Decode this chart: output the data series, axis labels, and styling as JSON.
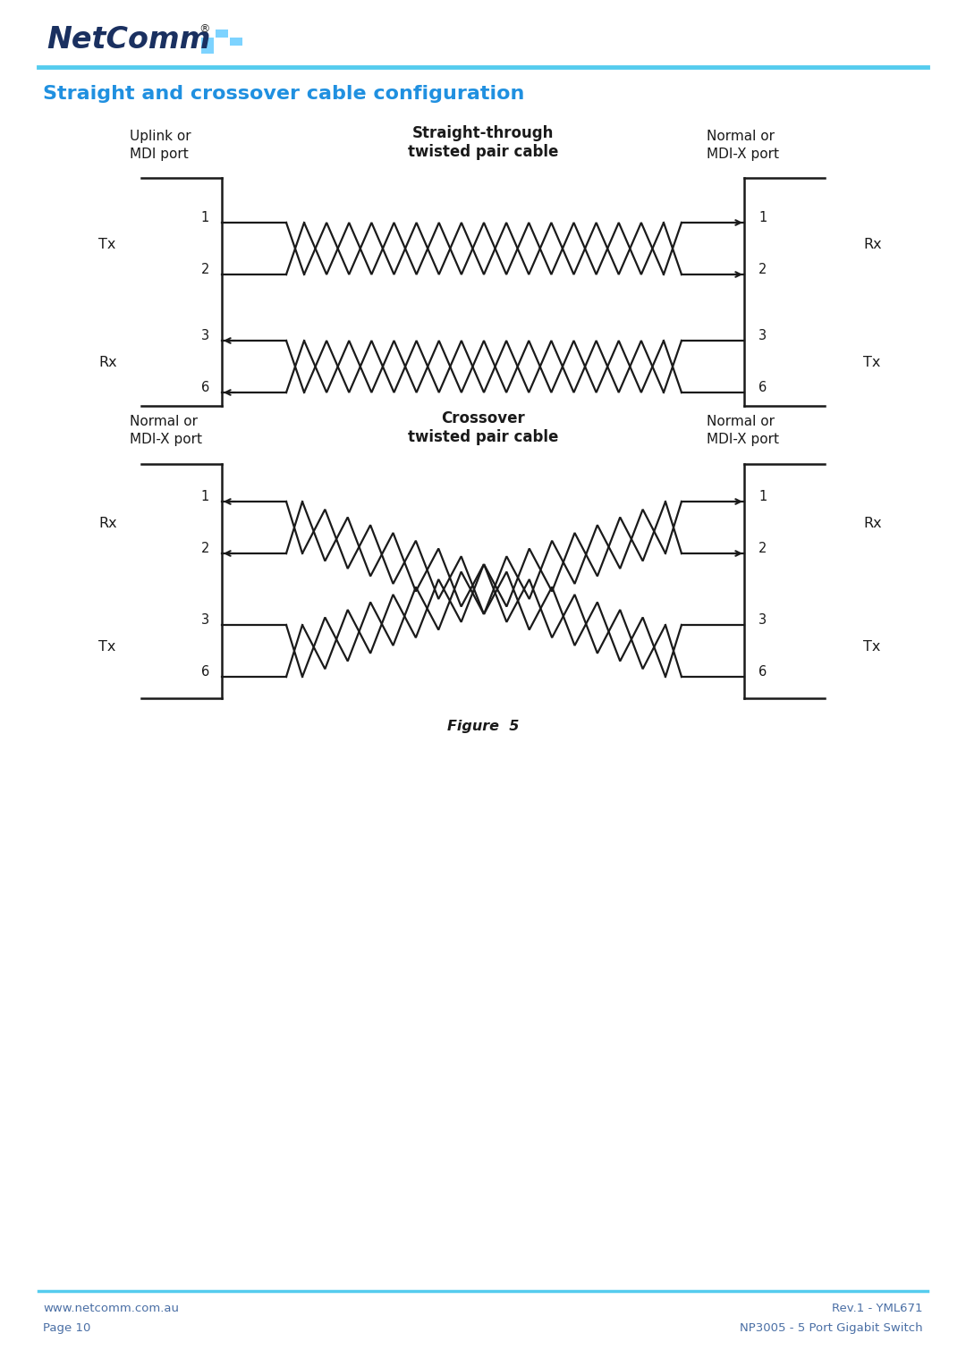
{
  "page_title": "Straight and crossover cable configuration",
  "title_color": "#2090E0",
  "bg_color": "#ffffff",
  "line_color": "#1a1a1a",
  "header_line_color": "#55bbee",
  "footer_text_color": "#4a6fa5",
  "straight_title_line1": "Straight-through",
  "straight_title_line2": "twisted pair cable",
  "crossover_title_line1": "Crossover",
  "crossover_title_line2": "twisted pair cable",
  "left_label_straight_1": "Uplink or",
  "left_label_straight_2": "MDI port",
  "right_label_straight_1": "Normal or",
  "right_label_straight_2": "MDI-X port",
  "left_label_crossover_1": "Normal or",
  "left_label_crossover_2": "MDI-X port",
  "right_label_crossover_1": "Normal or",
  "right_label_crossover_2": "MDI-X port",
  "straight_left_tx": "Tx",
  "straight_left_rx": "Rx",
  "straight_right_rx": "Rx",
  "straight_right_tx": "Tx",
  "crossover_left_rx": "Rx",
  "crossover_left_tx": "Tx",
  "crossover_right_rx": "Rx",
  "crossover_right_tx": "Tx",
  "footer_left_1": "www.netcomm.com.au",
  "footer_left_2": "Page 10",
  "footer_right_1": "Rev.1 - YML671",
  "footer_right_2": "NP3005 - 5 Port Gigabit Switch",
  "fig_caption": "Figure  5",
  "netcomm_text": "NetComm"
}
